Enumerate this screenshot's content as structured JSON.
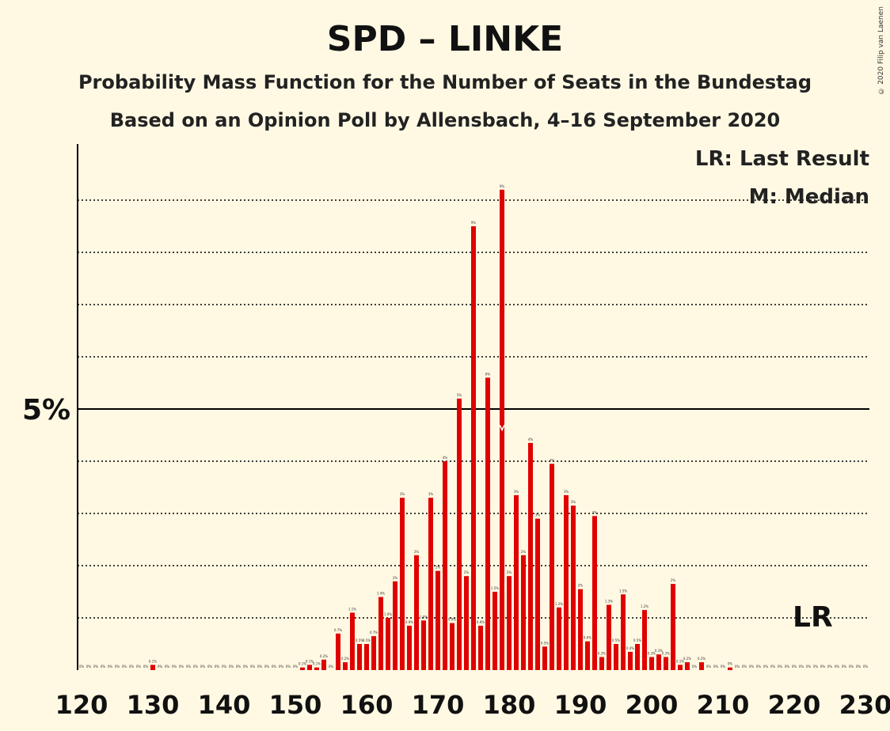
{
  "title": "SPD – LINKE",
  "subtitle1": "Probability Mass Function for the Number of Seats in the Bundestag",
  "subtitle2": "Based on an Opinion Poll by Allensbach, 4–16 September 2020",
  "legend": {
    "lr": "LR: Last Result",
    "median": "M: Median"
  },
  "copyright": "© 2020 Filip van Laenen",
  "y_tick_label": "5%",
  "lr_label": "LR",
  "colors": {
    "bar": "#e00000",
    "background": "#fff9e3",
    "axis": "#000000"
  },
  "chart_data": {
    "type": "bar",
    "title": "SPD – LINKE",
    "xlabel": "",
    "ylabel": "",
    "x_tick_labels": [
      "120",
      "130",
      "140",
      "150",
      "160",
      "170",
      "180",
      "190",
      "200",
      "210",
      "220",
      "230"
    ],
    "xlim": [
      120,
      230
    ],
    "ylim": [
      0,
      10
    ],
    "y_gridlines": [
      1,
      2,
      3,
      4,
      5,
      6,
      7,
      8,
      9
    ],
    "y_major": 5,
    "median_seat": 179,
    "last_result_seat": 222,
    "seats": [
      120,
      121,
      122,
      123,
      124,
      125,
      126,
      127,
      128,
      129,
      130,
      131,
      132,
      133,
      134,
      135,
      136,
      137,
      138,
      139,
      140,
      141,
      142,
      143,
      144,
      145,
      146,
      147,
      148,
      149,
      150,
      151,
      152,
      153,
      154,
      155,
      156,
      157,
      158,
      159,
      160,
      161,
      162,
      163,
      164,
      165,
      166,
      167,
      168,
      169,
      170,
      171,
      172,
      173,
      174,
      175,
      176,
      177,
      178,
      179,
      180,
      181,
      182,
      183,
      184,
      185,
      186,
      187,
      188,
      189,
      190,
      191,
      192,
      193,
      194,
      195,
      196,
      197,
      198,
      199,
      200,
      201,
      202,
      203,
      204,
      205,
      206,
      207,
      208,
      209,
      210,
      211,
      212,
      213,
      214,
      215,
      216,
      217,
      218,
      219,
      220,
      221,
      222,
      223,
      224,
      225,
      226,
      227,
      228,
      229,
      230
    ],
    "values": [
      0,
      0,
      0,
      0,
      0,
      0,
      0,
      0,
      0,
      0,
      0.1,
      0,
      0,
      0,
      0,
      0,
      0,
      0,
      0,
      0,
      0,
      0,
      0,
      0,
      0,
      0,
      0,
      0,
      0,
      0,
      0,
      0.05,
      0.1,
      0.05,
      0.2,
      0,
      0.7,
      0.15,
      1.1,
      0.5,
      0.5,
      0.65,
      1.4,
      1.0,
      1.7,
      3.3,
      0.85,
      2.2,
      0.95,
      3.3,
      1.9,
      4.0,
      0.9,
      5.2,
      1.8,
      8.5,
      0.85,
      5.6,
      1.5,
      9.2,
      1.8,
      3.35,
      2.2,
      4.35,
      2.9,
      0.45,
      3.95,
      1.2,
      3.35,
      3.15,
      1.55,
      0.55,
      2.95,
      0.25,
      1.25,
      0.5,
      1.45,
      0.35,
      0.5,
      1.15,
      0.25,
      0.3,
      0.25,
      1.65,
      0.1,
      0.15,
      0,
      0.15,
      0,
      0,
      0,
      0.05,
      0,
      0,
      0,
      0,
      0,
      0,
      0,
      0,
      0,
      0,
      0,
      0,
      0,
      0,
      0,
      0,
      0,
      0,
      0
    ],
    "value_labels": [
      "0%",
      "0%",
      "0%",
      "0%",
      "0%",
      "0%",
      "0%",
      "0%",
      "0%",
      "0%",
      "0.1%",
      "0%",
      "0%",
      "0%",
      "0%",
      "0%",
      "0%",
      "0%",
      "0%",
      "0%",
      "0%",
      "0%",
      "0%",
      "0%",
      "0%",
      "0%",
      "0%",
      "0%",
      "0%",
      "0%",
      "0%",
      "0.1%",
      "0.1%",
      "0.1%",
      "0.2%",
      "0%",
      "0.7%",
      "0.2%",
      "1.1%",
      "0.5%",
      "0.5%",
      "0.7%",
      "1.4%",
      "1.0%",
      "2%",
      "3%",
      "0.9%",
      "2%",
      "1.0%",
      "3%",
      "2%",
      "4%",
      "0.9%",
      "5%",
      "2%",
      "9%",
      "0.9%",
      "6%",
      "1.5%",
      "9%",
      "2%",
      "3%",
      "2%",
      "4%",
      "3%",
      "0.5%",
      "4%",
      "1.2%",
      "3%",
      "3%",
      "2%",
      "0.6%",
      "3%",
      "0.3%",
      "1.3%",
      "0.5%",
      "1.5%",
      "0.4%",
      "0.5%",
      "1.2%",
      "0.3%",
      "0.3%",
      "0.3%",
      "2%",
      "0.1%",
      "0.2%",
      "0%",
      "0.2%",
      "0%",
      "0%",
      "0%",
      "0%",
      "0%",
      "0%",
      "0%",
      "0%",
      "0%",
      "0%",
      "0%",
      "0%",
      "0%",
      "0%",
      "0%",
      "0%",
      "0%",
      "0%",
      "0%",
      "0%",
      "0%",
      "0%",
      "0%"
    ]
  }
}
